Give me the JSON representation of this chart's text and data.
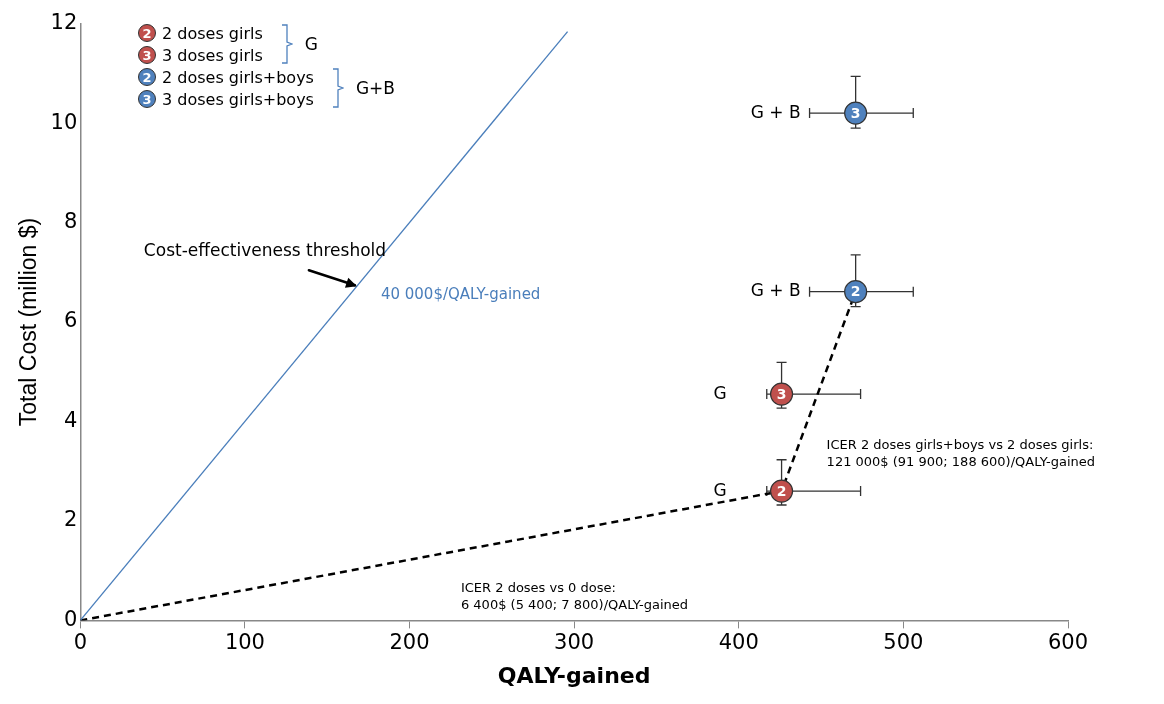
{
  "chart_data": {
    "type": "scatter",
    "xlabel": "QALY-gained",
    "ylabel": "Total Cost (million $)",
    "xlim": [
      0,
      600
    ],
    "xticks": [
      0,
      100,
      200,
      300,
      400,
      500,
      600
    ],
    "ylim": [
      0,
      12
    ],
    "yticks": [
      0,
      2,
      4,
      6,
      8,
      10,
      12
    ],
    "grid": false,
    "legend": "top left",
    "series": [
      {
        "type": "line",
        "color": "#4a7ebb",
        "x": [
          0,
          296
        ],
        "values": [
          0,
          11.84
        ],
        "marker": "none",
        "line_style": "solid"
      },
      {
        "type": "line",
        "color": "#000000",
        "x": [
          0,
          426,
          471
        ],
        "values": [
          0,
          2.6,
          6.61
        ],
        "marker": "none",
        "line_style": "dashed"
      },
      {
        "type": "scatter",
        "name": "2 doses girls",
        "color": "#c0504d",
        "x": [
          426
        ],
        "values": [
          2.6
        ],
        "xerrors": [
          [
            417,
            474
          ]
        ],
        "errors": [
          [
            2.32,
            3.23
          ]
        ],
        "marker": "circle"
      },
      {
        "type": "scatter",
        "name": "3 doses girls",
        "color": "#c0504d",
        "x": [
          426
        ],
        "values": [
          4.55
        ],
        "xerrors": [
          [
            417,
            474
          ]
        ],
        "errors": [
          [
            4.27,
            5.19
          ]
        ],
        "marker": "circle"
      },
      {
        "type": "scatter",
        "name": "2 doses girls+boys",
        "color": "#4f81bd",
        "x": [
          471
        ],
        "values": [
          6.61
        ],
        "xerrors": [
          [
            443,
            506
          ]
        ],
        "errors": [
          [
            6.31,
            7.35
          ]
        ],
        "marker": "circle"
      },
      {
        "type": "scatter",
        "name": "3 doses girls+boys",
        "color": "#4f81bd",
        "x": [
          471
        ],
        "values": [
          10.2
        ],
        "xerrors": [
          [
            443,
            506
          ]
        ],
        "errors": [
          [
            9.9,
            10.94
          ]
        ],
        "marker": "circle"
      }
    ],
    "annotations": [
      "G",
      "G+B",
      "G",
      "G",
      "G + B",
      "G + B",
      "40 000$/QALY-gained",
      "ICER 2 doses vs 0 dose:\n6 400$ (5 400; 7 800)/QALY-gained",
      "ICER 2 doses girls+boys vs 2 doses girls:\n121 000$ (91 900; 188 600)/QALY-gained",
      {
        "text": "Cost-effectiveness threshold",
        "x": 168,
        "y": 6.72
      },
      {
        "text": "2",
        "x": 426,
        "y": 2.6
      },
      {
        "text": "3",
        "x": 426,
        "y": 4.55
      },
      {
        "text": "2",
        "x": 471,
        "y": 6.61
      },
      {
        "text": "3",
        "x": 471,
        "y": 10.2
      }
    ]
  }
}
